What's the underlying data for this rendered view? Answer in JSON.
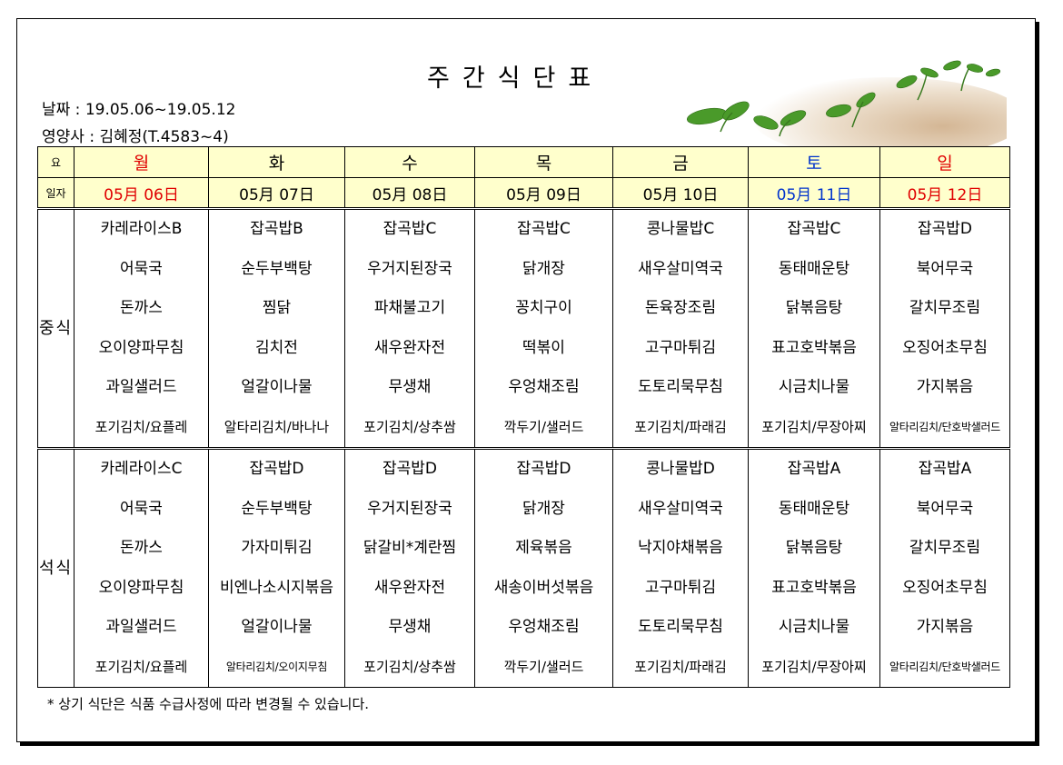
{
  "title": "주간식단표",
  "date_line": "날짜 : 19.05.06~19.05.12",
  "dietitian_line": "영양사 : 김혜정(T.4583~4)",
  "header": {
    "day_label": "요",
    "date_label": "일자",
    "days": [
      "월",
      "화",
      "수",
      "목",
      "금",
      "토",
      "일"
    ],
    "dates": [
      "05月 06日",
      "05月 07日",
      "05月 08日",
      "05月 09日",
      "05月 10日",
      "05月 11日",
      "05月 12日"
    ]
  },
  "meals": {
    "lunch_label": "중식",
    "dinner_label": "석식",
    "lunch": [
      [
        "카레라이스B",
        "어묵국",
        "돈까스",
        "오이양파무침",
        "과일샐러드",
        "포기김치/요플레"
      ],
      [
        "잡곡밥B",
        "순두부백탕",
        "찜닭",
        "김치전",
        "얼갈이나물",
        "알타리김치/바나나"
      ],
      [
        "잡곡밥C",
        "우거지된장국",
        "파채불고기",
        "새우완자전",
        "무생채",
        "포기김치/상추쌈"
      ],
      [
        "잡곡밥C",
        "닭개장",
        "꽁치구이",
        "떡볶이",
        "우엉채조림",
        "깍두기/샐러드"
      ],
      [
        "콩나물밥C",
        "새우살미역국",
        "돈육장조림",
        "고구마튀김",
        "도토리묵무침",
        "포기김치/파래김"
      ],
      [
        "잡곡밥C",
        "동태매운탕",
        "닭볶음탕",
        "표고호박볶음",
        "시금치나물",
        "포기김치/무장아찌"
      ],
      [
        "잡곡밥D",
        "북어무국",
        "갈치무조림",
        "오징어초무침",
        "가지볶음",
        "알타리김치/단호박샐러드"
      ]
    ],
    "dinner": [
      [
        "카레라이스C",
        "어묵국",
        "돈까스",
        "오이양파무침",
        "과일샐러드",
        "포기김치/요플레"
      ],
      [
        "잡곡밥D",
        "순두부백탕",
        "가자미튀김",
        "비엔나소시지볶음",
        "얼갈이나물",
        "알타리김치/오이지무침"
      ],
      [
        "잡곡밥D",
        "우거지된장국",
        "닭갈비*계란찜",
        "새우완자전",
        "무생채",
        "포기김치/상추쌈"
      ],
      [
        "잡곡밥D",
        "닭개장",
        "제육볶음",
        "새송이버섯볶음",
        "우엉채조림",
        "깍두기/샐러드"
      ],
      [
        "콩나물밥D",
        "새우살미역국",
        "낙지야채볶음",
        "고구마튀김",
        "도토리묵무침",
        "포기김치/파래김"
      ],
      [
        "잡곡밥A",
        "동태매운탕",
        "닭볶음탕",
        "표고호박볶음",
        "시금치나물",
        "포기김치/무장아찌"
      ],
      [
        "잡곡밥A",
        "북어무국",
        "갈치무조림",
        "오징어초무침",
        "가지볶음",
        "알타리김치/단호박샐러드"
      ]
    ]
  },
  "note": "* 상기 식단은 식품 수급사정에 따라 변경될 수 있습니다.",
  "colors": {
    "header_bg": "#ffffcc",
    "weekday_red": "#e00000",
    "saturday_blue": "#0033cc"
  }
}
